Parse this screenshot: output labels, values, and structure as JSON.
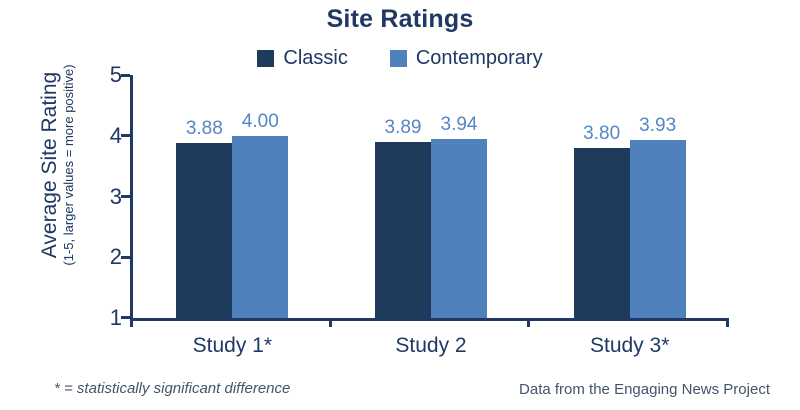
{
  "title": "Site Ratings",
  "legend": [
    {
      "label": "Classic",
      "color": "#1f3b5c"
    },
    {
      "label": "Contemporary",
      "color": "#4f81bd"
    }
  ],
  "y_axis": {
    "label": "Average Site Rating",
    "sublabel": "(1-5, larger values = more positive)",
    "ticks": [
      "5",
      "4",
      "3",
      "2",
      "1"
    ]
  },
  "footnotes": {
    "left": "* = statistically significant difference",
    "right": "Data from the Engaging News Project"
  },
  "colors": {
    "title_text": "#1f3864",
    "axis": "#1f3864",
    "value_label": "#5585c5",
    "footnote_text": "#44546a",
    "classic_bar": "#1f3b5c",
    "contemporary_bar": "#4f81bd"
  },
  "chart_data": {
    "type": "bar",
    "title": "Site Ratings",
    "categories": [
      "Study 1*",
      "Study 2",
      "Study 3*"
    ],
    "series": [
      {
        "name": "Classic",
        "color": "#1f3b5c",
        "values": [
          3.88,
          3.89,
          3.8
        ],
        "labels": [
          "3.88",
          "3.89",
          "3.80"
        ]
      },
      {
        "name": "Contemporary",
        "color": "#4f81bd",
        "values": [
          4.0,
          3.94,
          3.93
        ],
        "labels": [
          "4.00",
          "3.94",
          "3.93"
        ]
      }
    ],
    "xlabel": "",
    "ylabel": "Average Site Rating (1-5, larger values = more positive)",
    "ylim": [
      1,
      5
    ],
    "grid": false,
    "legend_position": "top",
    "annotations": [
      "* = statistically significant difference",
      "Data from the Engaging News Project"
    ]
  }
}
